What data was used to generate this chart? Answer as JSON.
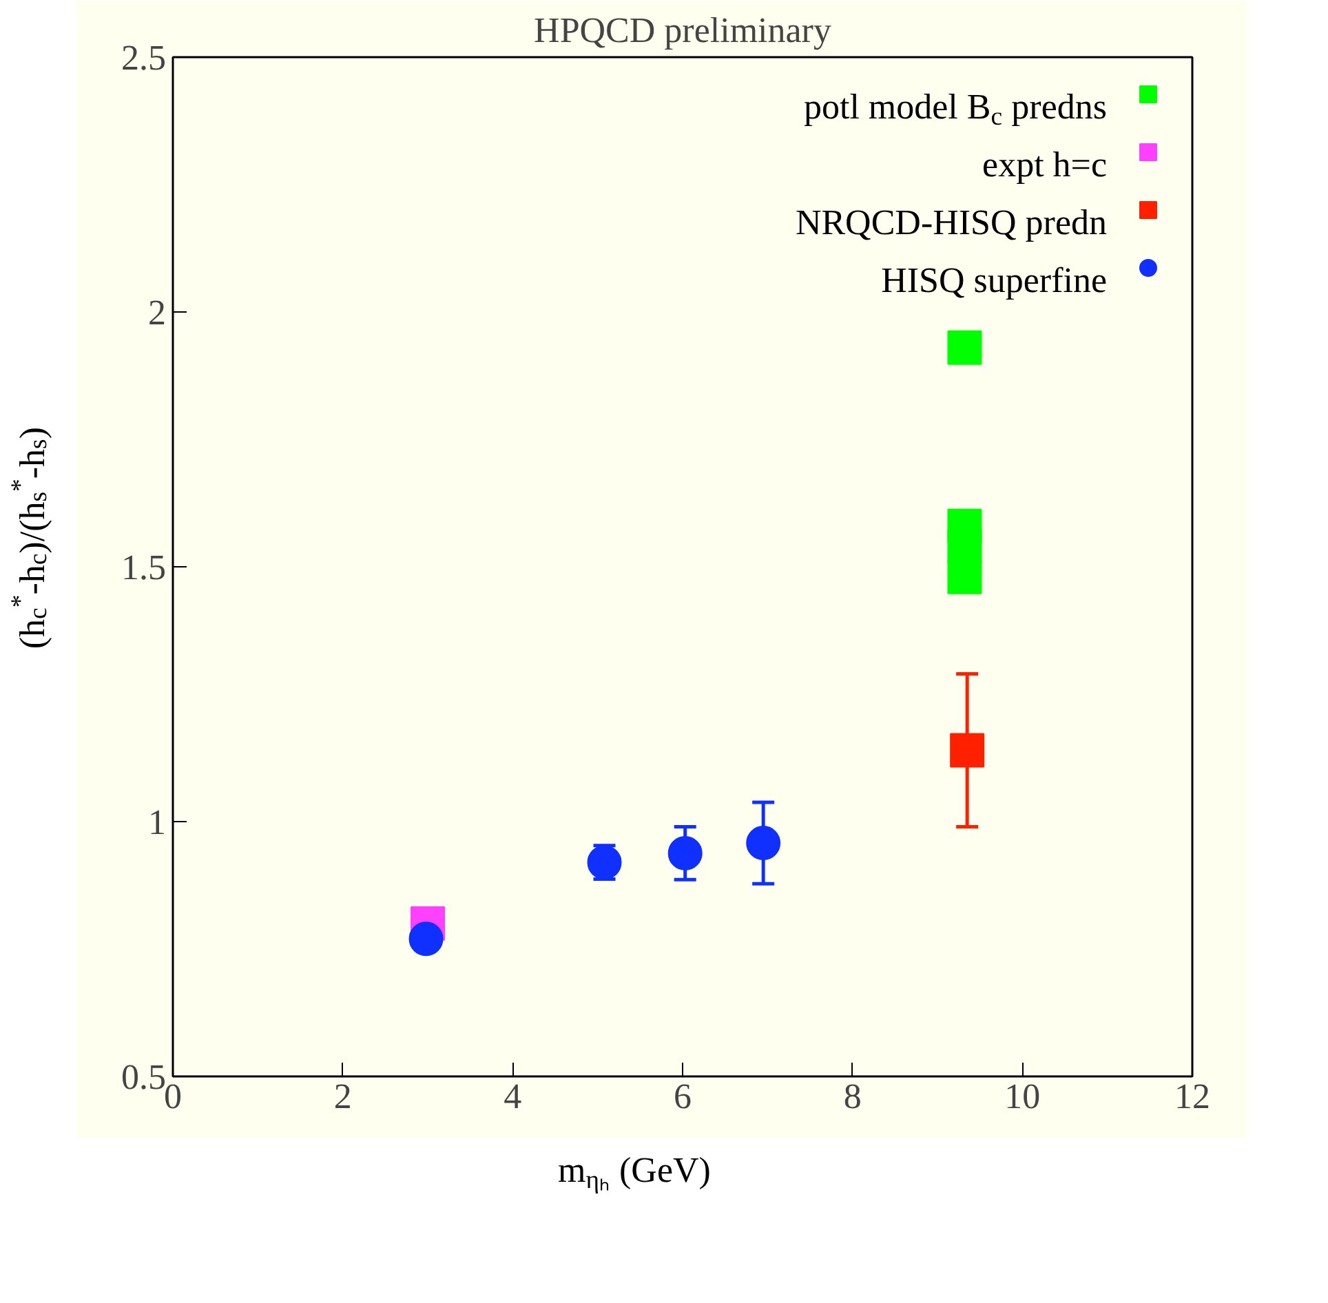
{
  "chart_data": {
    "type": "scatter",
    "title": "HPQCD preliminary",
    "xlabel": "m$_{ηₕ}$ (GeV)",
    "ylabel": "(h$_{c}$$^{*}$-h$_{c}$)/(h$_{s}$$^{*}$-h$_{s}$)",
    "xlim": [
      0,
      12
    ],
    "xticks": [
      0,
      2,
      4,
      6,
      8,
      10,
      12
    ],
    "ylim": [
      0.5,
      2.5
    ],
    "yticks": [
      0.5,
      1,
      1.5,
      2,
      2.5
    ],
    "grid": false,
    "legend": "top right",
    "series": [
      {
        "name": "potl model B$_{c}$ predns",
        "color": "#00ff00",
        "marker": "square",
        "x": [
          9.32,
          9.32,
          9.32,
          9.32
        ],
        "values": [
          1.93,
          1.58,
          1.54,
          1.48
        ]
      },
      {
        "name": "expt h=c",
        "color": "#ff40ff",
        "marker": "square",
        "x": [
          3.0
        ],
        "values": [
          0.8
        ]
      },
      {
        "name": "NRQCD-HISQ predn",
        "color": "#ff2000",
        "marker": "square",
        "x": [
          9.35
        ],
        "values": [
          1.14
        ],
        "errors": [
          0.15
        ]
      },
      {
        "name": "HISQ superfine",
        "color": "#1030ff",
        "marker": "circle",
        "x": [
          2.98,
          5.08,
          6.03,
          6.95
        ],
        "values": [
          0.77,
          0.92,
          0.938,
          0.958
        ],
        "errors": [
          null,
          0.033,
          0.052,
          0.08
        ]
      }
    ]
  }
}
